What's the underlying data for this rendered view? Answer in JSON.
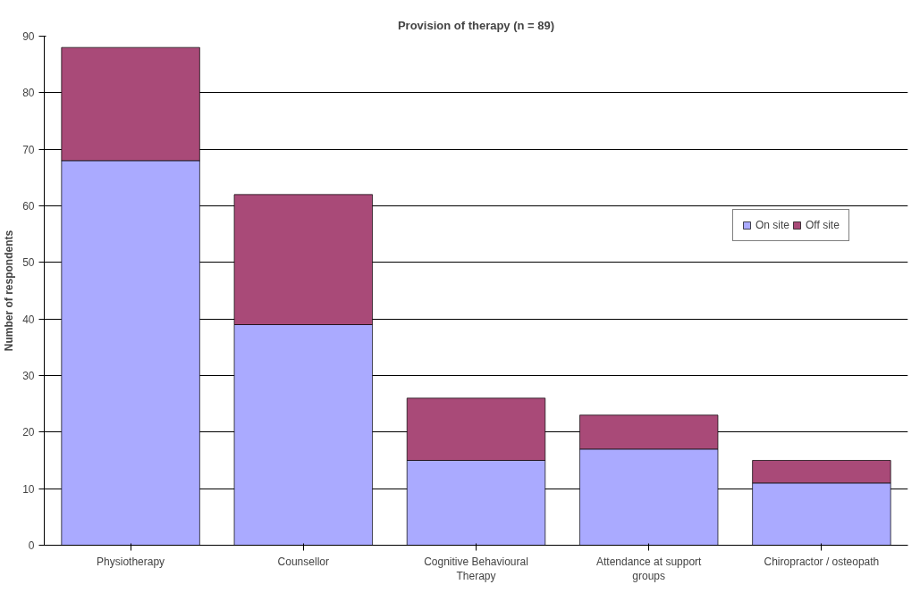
{
  "chart_data": {
    "type": "bar",
    "title": "Provision of therapy (n = 89)",
    "ylabel": "Number of respondents",
    "categories": [
      "Physiotherapy",
      "Counsellor",
      "Cognitive Behavioural Therapy",
      "Attendance at support groups",
      "Chiropractor / osteopath"
    ],
    "series": [
      {
        "name": "On site",
        "color": "#aaaaff",
        "values": [
          68,
          39,
          15,
          17,
          11
        ]
      },
      {
        "name": "Off site",
        "color": "#a94a78",
        "values": [
          20,
          23,
          11,
          6,
          4
        ]
      }
    ],
    "stacked": true,
    "ylim": [
      0,
      90
    ],
    "yticks": [
      0,
      10,
      20,
      30,
      40,
      50,
      60,
      70,
      80,
      90
    ],
    "grid": "y",
    "legend": "right"
  }
}
